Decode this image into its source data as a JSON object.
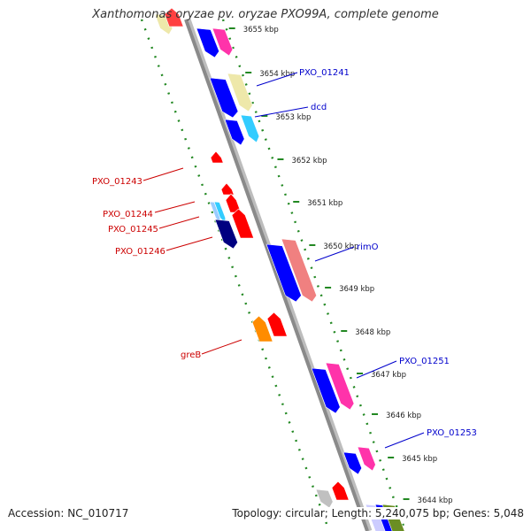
{
  "title": "Xanthomonas oryzae pv. oryzae PXO99A, complete genome",
  "accession": "Accession: NC_010717",
  "summary": "Topology: circular; Length: 5,240,075 bp; Genes: 5,048",
  "colors": {
    "backbone": "#8a8a8a",
    "tick": "#228822",
    "forward_label": "#0000cc",
    "reverse_label": "#cc0000"
  },
  "ticks": [
    "3655 kbp",
    "3654 kbp",
    "3653 kbp",
    "3652 kbp",
    "3651 kbp",
    "3650 kbp",
    "3649 kbp",
    "3648 kbp",
    "3647 kbp",
    "3646 kbp",
    "3645 kbp",
    "3644 kbp"
  ],
  "gene_labels": [
    {
      "text": "PXO_01241",
      "strand": "forward"
    },
    {
      "text": "dcd",
      "strand": "forward"
    },
    {
      "text": "rimO",
      "strand": "forward"
    },
    {
      "text": "PXO_01251",
      "strand": "forward"
    },
    {
      "text": "PXO_01253",
      "strand": "forward"
    },
    {
      "text": "PXO_01243",
      "strand": "reverse"
    },
    {
      "text": "PXO_01244",
      "strand": "reverse"
    },
    {
      "text": "PXO_01245",
      "strand": "reverse"
    },
    {
      "text": "PXO_01246",
      "strand": "reverse"
    },
    {
      "text": "greB",
      "strand": "reverse"
    }
  ]
}
